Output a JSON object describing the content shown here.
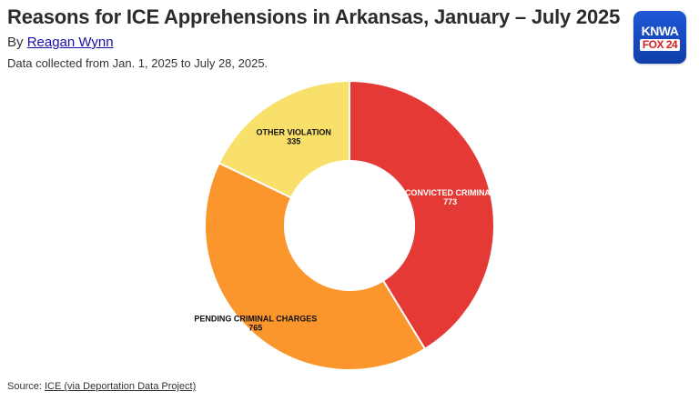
{
  "header": {
    "title": "Reasons for ICE Apprehensions in Arkansas, January – July 2025",
    "byline_prefix": "By",
    "author": "Reagan Wynn",
    "note": "Data collected from Jan. 1, 2025 to July 28, 2025."
  },
  "logo": {
    "top": "KNWA",
    "bottom": "FOX 24"
  },
  "footer": {
    "source_prefix": "Source:",
    "source_link": "ICE (via Deportation Data Project)"
  },
  "chart_data": {
    "type": "pie",
    "donut": true,
    "title": "Reasons for ICE Apprehensions in Arkansas, January – July 2025",
    "slices": [
      {
        "label": "CONVICTED CRIMINAL",
        "value": 773,
        "color": "#e53935"
      },
      {
        "label": "PENDING CRIMINAL CHARGES",
        "value": 765,
        "color": "#fb962d"
      },
      {
        "label": "OTHER VIOLATION",
        "value": 335,
        "color": "#f8e06a"
      }
    ]
  }
}
